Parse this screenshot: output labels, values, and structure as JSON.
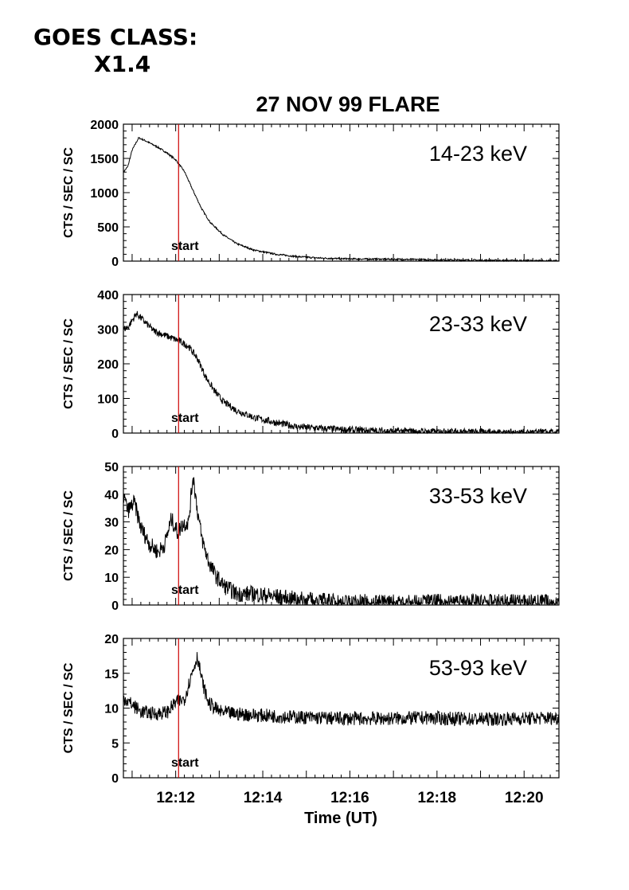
{
  "header": {
    "goes_label": "GOES CLASS:",
    "goes_value": "X1.4"
  },
  "chart_data": {
    "type": "line",
    "title": "27 NOV 99 FLARE",
    "xlabel": "Time (UT)",
    "x_ticks": [
      "12:12",
      "12:14",
      "12:16",
      "12:18",
      "12:20"
    ],
    "xlim": [
      "12:10:48",
      "12:20:48"
    ],
    "marker": {
      "label": "start",
      "time": "12:12:04",
      "color": "#cc0000"
    },
    "panels": [
      {
        "band": "14-23 keV",
        "ylabel": "CTS / SEC / SC",
        "ylim": [
          0,
          2000
        ],
        "yticks": [
          "0",
          "500",
          "1000",
          "1500",
          "2000"
        ],
        "series": {
          "t_min": [
            0.0,
            0.1,
            0.2,
            0.35,
            0.5,
            0.8,
            1.0,
            1.2,
            1.4,
            1.6,
            1.8,
            2.0,
            2.3,
            2.6,
            3.0,
            3.5,
            4.0,
            4.5,
            5.0,
            5.5,
            6.0,
            7.0,
            8.0,
            9.0,
            10.0
          ],
          "values": [
            1300,
            1380,
            1620,
            1800,
            1760,
            1660,
            1580,
            1480,
            1310,
            1030,
            760,
            560,
            380,
            255,
            160,
            100,
            65,
            45,
            35,
            30,
            28,
            20,
            14,
            8,
            4
          ]
        }
      },
      {
        "band": "23-33 keV",
        "ylabel": "CTS / SEC / SC",
        "ylim": [
          0,
          400
        ],
        "yticks": [
          "0",
          "100",
          "200",
          "300",
          "400"
        ],
        "series": {
          "t_min": [
            0.0,
            0.1,
            0.3,
            0.5,
            0.7,
            0.9,
            1.1,
            1.3,
            1.5,
            1.7,
            1.9,
            2.1,
            2.3,
            2.6,
            3.0,
            3.5,
            4.0,
            5.0,
            6.0,
            7.0,
            8.0,
            9.0,
            10.0
          ],
          "values": [
            300,
            305,
            345,
            320,
            295,
            285,
            275,
            265,
            250,
            215,
            160,
            120,
            90,
            65,
            45,
            30,
            18,
            10,
            6,
            4,
            3,
            2,
            2
          ]
        }
      },
      {
        "band": "33-53 keV",
        "ylabel": "CTS / SEC / SC",
        "ylim": [
          0,
          50
        ],
        "yticks": [
          "0",
          "10",
          "20",
          "30",
          "40",
          "50"
        ],
        "series": {
          "t_min": [
            0.0,
            0.1,
            0.25,
            0.4,
            0.6,
            0.8,
            0.95,
            1.1,
            1.25,
            1.35,
            1.5,
            1.6,
            1.7,
            1.8,
            1.95,
            2.1,
            2.3,
            2.6,
            3.0,
            3.5,
            4.0,
            5.0,
            6.0,
            7.0,
            8.0,
            9.0,
            10.0
          ],
          "values": [
            40,
            34,
            37,
            28,
            22,
            19,
            22,
            31,
            26,
            29,
            30,
            47,
            34,
            24,
            16,
            11,
            7,
            4,
            4,
            3,
            2,
            1,
            1,
            1,
            1,
            1,
            1
          ]
        }
      },
      {
        "band": "53-93 keV",
        "ylabel": "CTS / SEC / SC",
        "ylim": [
          0,
          20
        ],
        "yticks": [
          "0",
          "5",
          "10",
          "15",
          "20"
        ],
        "series": {
          "t_min": [
            0.0,
            0.2,
            0.4,
            0.7,
            1.0,
            1.2,
            1.4,
            1.55,
            1.7,
            1.8,
            1.95,
            2.2,
            2.5,
            3.0,
            4.0,
            5.0,
            6.0,
            7.0,
            8.0,
            9.0,
            10.0
          ],
          "values": [
            11.5,
            10.5,
            9.5,
            9.2,
            9.4,
            10.8,
            11.3,
            14.5,
            17.5,
            14.0,
            10.8,
            9.5,
            9.2,
            9.0,
            8.7,
            8.5,
            8.5,
            8.6,
            8.4,
            8.5,
            8.6
          ]
        }
      }
    ]
  }
}
